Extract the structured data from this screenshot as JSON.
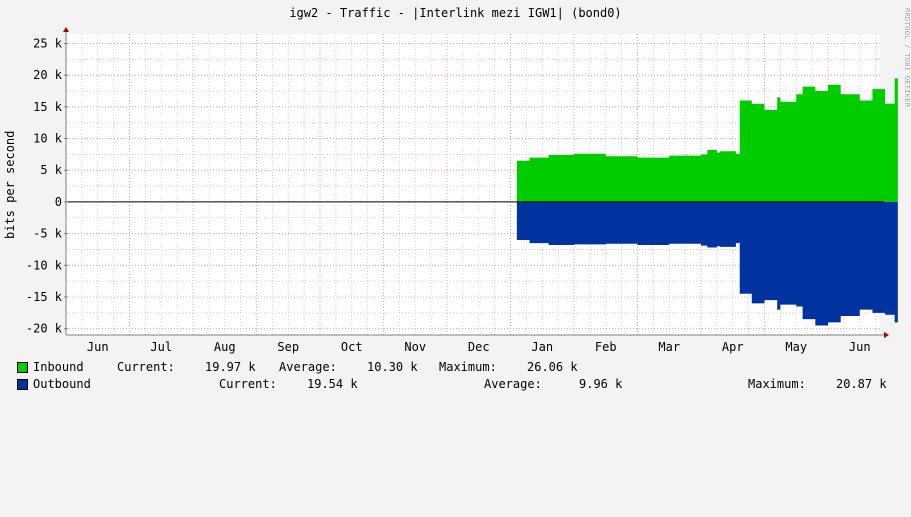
{
  "title": "igw2 - Traffic - |Interlink mezi IGW1| (bond0)",
  "watermark": "RRDTOOL / TOBI OETIKER",
  "ylabel": "bits per second",
  "colors": {
    "inbound": "#00cc00",
    "outbound": "#0033a0",
    "grid_minor": "#e6c8c8",
    "grid_major": "#ff9d9d",
    "axis": "#808080",
    "canvas": "#ffffff"
  },
  "chart_data": {
    "type": "area",
    "ylabel": "bits per second",
    "ylim": [
      -21000,
      26500
    ],
    "yticks": [
      25000,
      20000,
      15000,
      10000,
      5000,
      0,
      -5000,
      -10000,
      -15000,
      -20000
    ],
    "ytick_labels": [
      "25 k",
      "20 k",
      "15 k",
      "10 k",
      "5 k",
      "0",
      "-5 k",
      "-10 k",
      "-15 k",
      "-20 k"
    ],
    "x_month_labels": [
      "Jun",
      "Jul",
      "Aug",
      "Sep",
      "Oct",
      "Nov",
      "Dec",
      "Jan",
      "Feb",
      "Mar",
      "Apr",
      "May",
      "Jun"
    ],
    "x_months_at_boundaries": [
      0,
      1,
      2,
      3,
      4,
      5,
      6,
      7,
      8,
      9,
      10,
      11,
      12
    ],
    "x_range_months": [
      0,
      13.2
    ],
    "grid": true,
    "series": [
      {
        "name": "Inbound",
        "x_months": [
          7.1,
          7.3,
          7.6,
          8.0,
          8.5,
          9.0,
          9.5,
          10.0,
          10.1,
          10.25,
          10.3,
          10.55,
          10.6,
          10.61,
          10.8,
          11.0,
          11.2,
          11.25,
          11.5,
          11.6,
          11.8,
          12.0,
          12.2,
          12.5,
          12.7,
          12.9,
          13.05,
          13.1
        ],
        "values": [
          6500,
          7000,
          7400,
          7600,
          7200,
          7000,
          7300,
          7500,
          8200,
          7800,
          8000,
          7600,
          7500,
          16000,
          15500,
          14500,
          16500,
          15800,
          17000,
          18200,
          17500,
          18500,
          17000,
          16000,
          17800,
          15500,
          19500,
          19970
        ]
      },
      {
        "name": "Outbound",
        "x_months": [
          7.1,
          7.3,
          7.6,
          8.0,
          8.5,
          9.0,
          9.5,
          10.0,
          10.1,
          10.25,
          10.3,
          10.55,
          10.6,
          10.61,
          10.8,
          11.0,
          11.2,
          11.25,
          11.5,
          11.6,
          11.8,
          12.0,
          12.2,
          12.5,
          12.7,
          12.9,
          13.05,
          13.1
        ],
        "values": [
          -6000,
          -6500,
          -6800,
          -6700,
          -6600,
          -6800,
          -6600,
          -6900,
          -7200,
          -7000,
          -7100,
          -6500,
          -6400,
          -14500,
          -16000,
          -15500,
          -17000,
          -16200,
          -16500,
          -18500,
          -19500,
          -19000,
          -18000,
          -17000,
          -17500,
          -17800,
          -19000,
          -19540
        ]
      }
    ]
  },
  "legend": {
    "inbound": {
      "name": "Inbound",
      "current_label": "Current:",
      "current": "19.97 k",
      "average_label": "Average:",
      "average": "10.30 k",
      "maximum_label": "Maximum:",
      "maximum": "26.06 k"
    },
    "outbound": {
      "name": "Outbound",
      "current_label": "Current:",
      "current": "19.54 k",
      "average_label": "Average:",
      "average": "9.96 k",
      "maximum_label": "Maximum:",
      "maximum": "20.87 k"
    }
  }
}
